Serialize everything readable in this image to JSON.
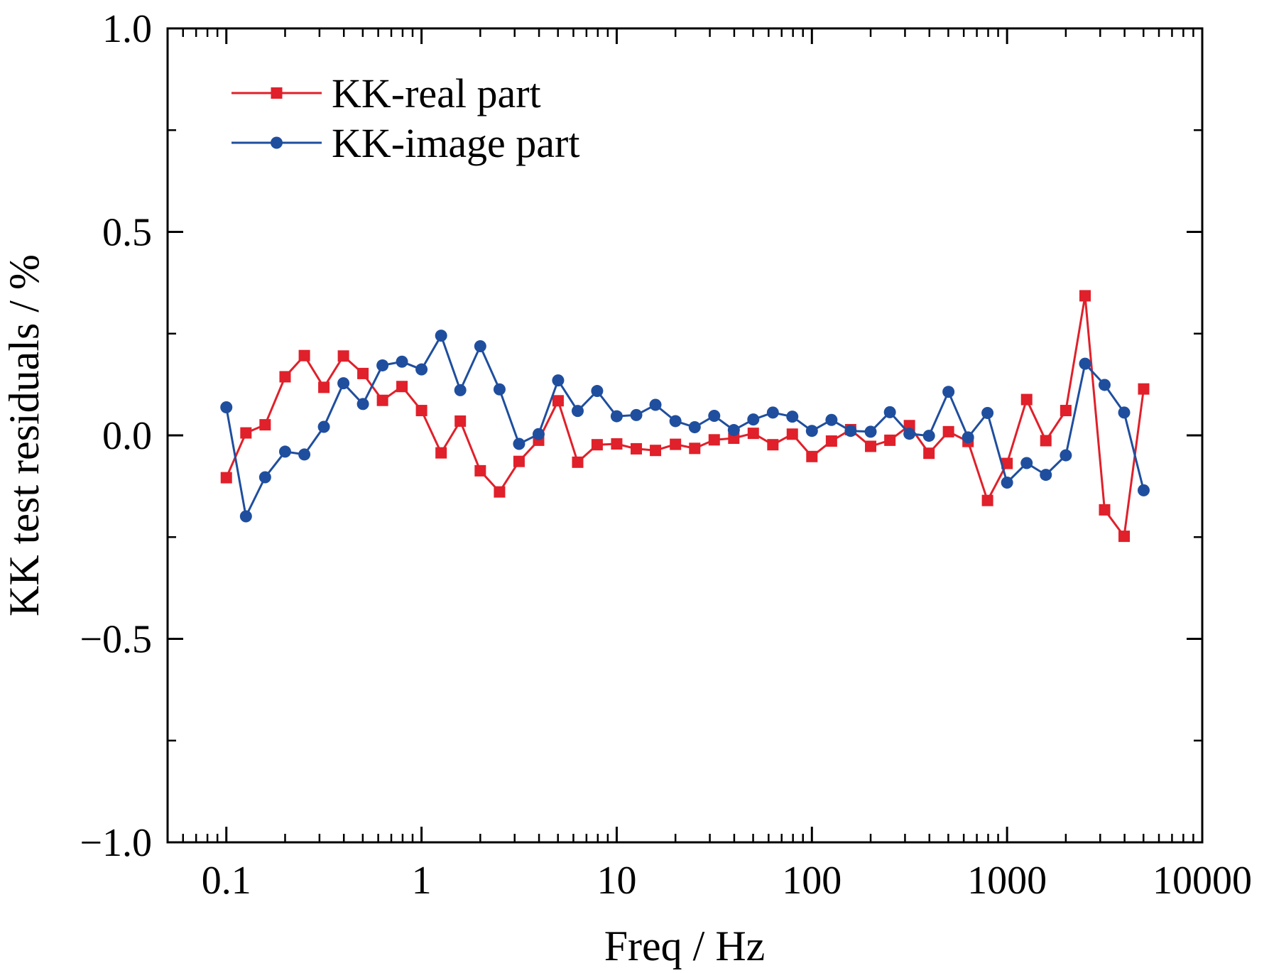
{
  "chart_data": {
    "type": "line",
    "title": "",
    "xlabel": "Freq / Hz",
    "ylabel": "KK test residuals / %",
    "xscale": "log",
    "xlim": [
      0.05,
      10000
    ],
    "ylim": [
      -1.0,
      1.0
    ],
    "x_ticks": [
      0.1,
      1,
      10,
      100,
      1000,
      10000
    ],
    "x_tick_labels": [
      "0.1",
      "1",
      "10",
      "100",
      "1000",
      "10000"
    ],
    "y_ticks": [
      -1.0,
      -0.5,
      0.0,
      0.5,
      1.0
    ],
    "y_tick_labels": [
      "−1.0",
      "−0.5",
      "0.0",
      "0.5",
      "1.0"
    ],
    "grid": false,
    "legend_position": "top-left",
    "x": [
      0.1,
      0.126,
      0.158,
      0.2,
      0.251,
      0.316,
      0.398,
      0.501,
      0.631,
      0.794,
      1,
      1.26,
      1.58,
      2,
      2.51,
      3.16,
      3.98,
      5.01,
      6.31,
      7.94,
      10,
      12.6,
      15.8,
      20,
      25.1,
      31.6,
      39.8,
      50.1,
      63.1,
      79.4,
      100,
      126,
      158,
      200,
      251,
      316,
      398,
      501,
      631,
      794,
      1000,
      1260,
      1580,
      2000,
      2510,
      3160,
      3980,
      5010
    ],
    "series": [
      {
        "name": "KK-real part",
        "color": "#e0202a",
        "marker": "square",
        "values": [
          -0.104,
          0.006,
          0.026,
          0.144,
          0.196,
          0.118,
          0.195,
          0.152,
          0.086,
          0.12,
          0.061,
          -0.043,
          0.035,
          -0.087,
          -0.139,
          -0.064,
          -0.012,
          0.085,
          -0.066,
          -0.023,
          -0.021,
          -0.033,
          -0.037,
          -0.022,
          -0.032,
          -0.011,
          -0.007,
          0.005,
          -0.023,
          0.003,
          -0.052,
          -0.014,
          0.014,
          -0.027,
          -0.012,
          0.024,
          -0.044,
          0.009,
          -0.015,
          -0.16,
          -0.069,
          0.088,
          -0.013,
          0.061,
          0.343,
          -0.183,
          -0.248,
          0.114
        ]
      },
      {
        "name": "KK-image part",
        "color": "#1f4e9e",
        "marker": "circle",
        "values": [
          0.069,
          -0.199,
          -0.103,
          -0.04,
          -0.047,
          0.021,
          0.128,
          0.077,
          0.172,
          0.181,
          0.162,
          0.245,
          0.111,
          0.219,
          0.113,
          -0.021,
          0.003,
          0.135,
          0.06,
          0.109,
          0.047,
          0.05,
          0.075,
          0.035,
          0.02,
          0.048,
          0.013,
          0.039,
          0.056,
          0.046,
          0.011,
          0.038,
          0.011,
          0.009,
          0.057,
          0.004,
          -0.001,
          0.107,
          -0.005,
          0.055,
          -0.116,
          -0.068,
          -0.097,
          -0.049,
          0.176,
          0.124,
          0.056,
          -0.135
        ]
      }
    ]
  }
}
